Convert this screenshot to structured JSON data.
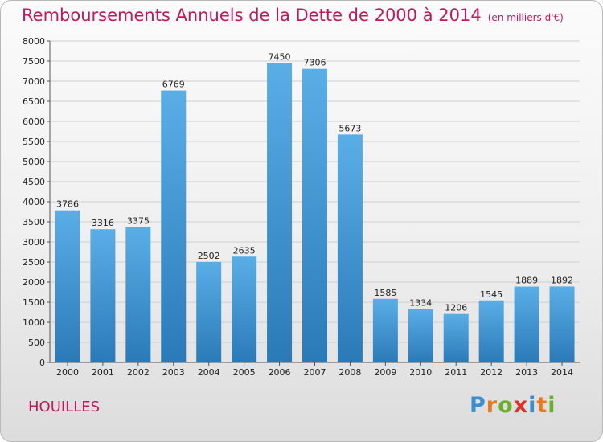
{
  "title": "Remboursements Annuels de la Dette de 2000 à 2014",
  "subtitle": "(en milliers d'€)",
  "commune": "HOUILLES",
  "logo": {
    "letters": [
      "P",
      "r",
      "o",
      "x",
      "i",
      "t",
      "i"
    ],
    "colors": [
      "#3b8fd0",
      "#e87a1c",
      "#6bb02a",
      "#e0302a",
      "#3b8fd0",
      "#e87a1c",
      "#6bb02a"
    ]
  },
  "colors": {
    "bar_top": "#5aaee6",
    "bar_bottom": "#2a7ab8",
    "title": "#c2185b",
    "grid": "#cfcfcf"
  },
  "chart_data": {
    "type": "bar",
    "categories": [
      "2000",
      "2001",
      "2002",
      "2003",
      "2004",
      "2005",
      "2006",
      "2007",
      "2008",
      "2009",
      "2010",
      "2011",
      "2012",
      "2013",
      "2014"
    ],
    "values": [
      3786,
      3316,
      3375,
      6769,
      2502,
      2635,
      7450,
      7306,
      5673,
      1585,
      1334,
      1206,
      1545,
      1889,
      1892
    ],
    "ylim": [
      0,
      8000
    ],
    "yticks": [
      0,
      500,
      1000,
      1500,
      2000,
      2500,
      3000,
      3500,
      4000,
      4500,
      5000,
      5500,
      6000,
      6500,
      7000,
      7500,
      8000
    ],
    "grid": true
  }
}
